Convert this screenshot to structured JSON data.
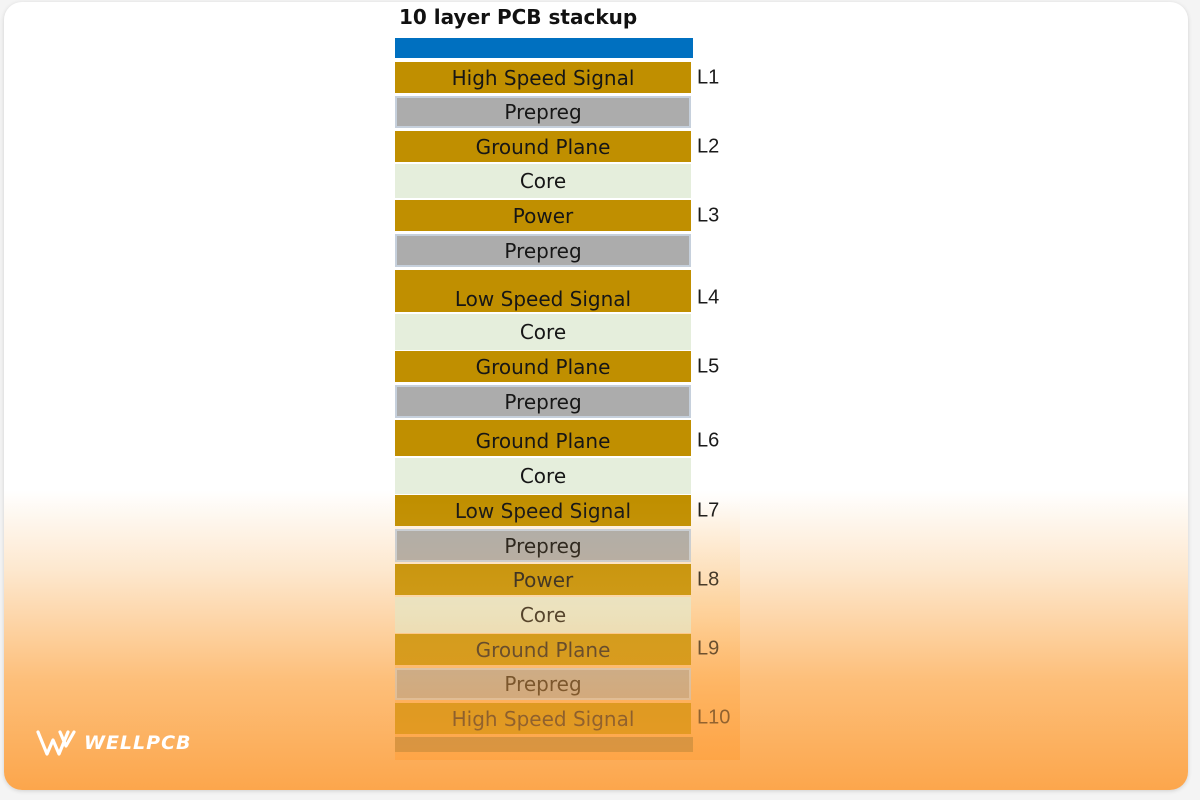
{
  "title": "10 layer PCB stackup",
  "layers": [
    {
      "text": "High Speed Signal",
      "type": "copper"
    },
    {
      "text": "Prepreg",
      "type": "prepreg"
    },
    {
      "text": "Ground Plane",
      "type": "copper"
    },
    {
      "text": "Core",
      "type": "core"
    },
    {
      "text": "Power",
      "type": "copper"
    },
    {
      "text": "Prepreg",
      "type": "prepreg"
    },
    {
      "text": "Low Speed Signal",
      "type": "copper"
    },
    {
      "text": "Core",
      "type": "core"
    },
    {
      "text": "Ground Plane",
      "type": "copper"
    },
    {
      "text": "Prepreg",
      "type": "prepreg"
    },
    {
      "text": "Ground Plane",
      "type": "copper"
    },
    {
      "text": "Core",
      "type": "core"
    },
    {
      "text": "Low Speed Signal",
      "type": "copper"
    },
    {
      "text": "Prepreg",
      "type": "prepreg"
    },
    {
      "text": "Power",
      "type": "copper"
    },
    {
      "text": "Core",
      "type": "core"
    },
    {
      "text": "Ground Plane",
      "type": "copper"
    },
    {
      "text": "Prepreg",
      "type": "prepreg"
    },
    {
      "text": "High Speed Signal",
      "type": "copper"
    }
  ],
  "layer_labels": [
    "L1",
    "L2",
    "L3",
    "L4",
    "L5",
    "L6",
    "L7",
    "L8",
    "L9",
    "L10"
  ],
  "colors": {
    "top_cap": "#0070c0",
    "bottom_cap": "#a58445",
    "copper": "#c08f00",
    "prepreg": "#acacac",
    "core": "#e5eedc"
  },
  "logo": {
    "text": "WELLPCB"
  }
}
